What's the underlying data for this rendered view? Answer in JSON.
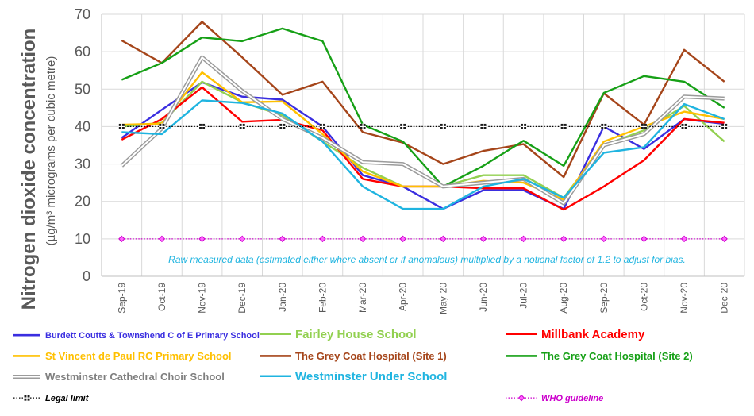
{
  "chart_data": {
    "type": "line",
    "title": "",
    "ylabel": "Nitrogen dioxide concentration",
    "ylabel_units": "(µg/m³ micrograms per cubic metre)",
    "ylim": [
      0,
      70
    ],
    "yticks": [
      "0",
      "10",
      "20",
      "30",
      "40",
      "50",
      "60",
      "70"
    ],
    "categories": [
      "Sep-19",
      "Oct-19",
      "Nov-19",
      "Dec-19",
      "Jan-20",
      "Feb-20",
      "Mar-20",
      "Apr-20",
      "May-20",
      "Jun-20",
      "Jul-20",
      "Aug-20",
      "Sep-20",
      "Oct-20",
      "Nov-20",
      "Dec-20"
    ],
    "grid": true,
    "annotation": "Raw measured data (estimated either where absent or if anomalous) multiplied by a notional factor of 1.2 to adjust for bias.",
    "series": [
      {
        "name": "Burdett Coutts & Townshend C of E Primary School",
        "color": "#3a2ee0",
        "values": [
          37,
          44.5,
          51.8,
          48,
          47.2,
          40,
          27,
          24,
          18,
          23,
          23,
          18,
          40,
          34,
          42,
          40.7
        ]
      },
      {
        "name": "Fairley House School",
        "color": "#92d050",
        "values": [
          40,
          41,
          52,
          46.5,
          43,
          36,
          29,
          24,
          24,
          27,
          27,
          21,
          35,
          39,
          45.5,
          36
        ]
      },
      {
        "name": "Millbank Academy",
        "color": "#ff0000",
        "values": [
          36.5,
          42,
          50.5,
          41.3,
          41.8,
          39,
          26,
          24,
          24,
          23.5,
          23.5,
          17.8,
          24,
          31,
          42,
          41
        ]
      },
      {
        "name": "St Vincent de Paul RC Primary School",
        "color": "#ffc000",
        "values": [
          40.5,
          40.8,
          54.5,
          46.5,
          46.7,
          38,
          28,
          24,
          24,
          25.5,
          25,
          20.5,
          36,
          40,
          44,
          42
        ]
      },
      {
        "name": "The Grey Coat Hospital (Site 1)",
        "color": "#a5451a",
        "values": [
          63,
          57,
          68,
          58.5,
          48.5,
          52,
          38.5,
          35.7,
          30,
          33.5,
          35.3,
          26.5,
          48.9,
          40.5,
          60.5,
          52
        ]
      },
      {
        "name": "The Grey Coat Hospital (Site 2)",
        "color": "#16a016",
        "values": [
          52.5,
          57,
          63.8,
          62.8,
          66.2,
          62.8,
          40.5,
          36,
          24,
          29.5,
          36.2,
          29.5,
          49,
          53.5,
          52,
          45
        ]
      },
      {
        "name": "Westminster Cathedral Choir School",
        "color": "#9b9b9b",
        "values": [
          29.5,
          39.5,
          58.5,
          49.5,
          42,
          37,
          30.5,
          30,
          24,
          25,
          26,
          19.5,
          35,
          38,
          48,
          47.5
        ]
      },
      {
        "name": "Westminster Under School",
        "color": "#1fb4e0",
        "values": [
          38.5,
          38,
          47,
          46.3,
          43.5,
          36,
          24,
          18,
          18,
          24,
          26,
          21,
          33,
          34.5,
          46,
          42
        ]
      },
      {
        "name": "Legal limit",
        "color": "#000000",
        "values": [
          40,
          40,
          40,
          40,
          40,
          40,
          40,
          40,
          40,
          40,
          40,
          40,
          40,
          40,
          40,
          40
        ]
      },
      {
        "name": "WHO guideline",
        "color": "#cc00cc",
        "values": [
          10,
          10,
          10,
          10,
          10,
          10,
          10,
          10,
          10,
          10,
          10,
          10,
          10,
          10,
          10,
          10
        ]
      }
    ]
  }
}
